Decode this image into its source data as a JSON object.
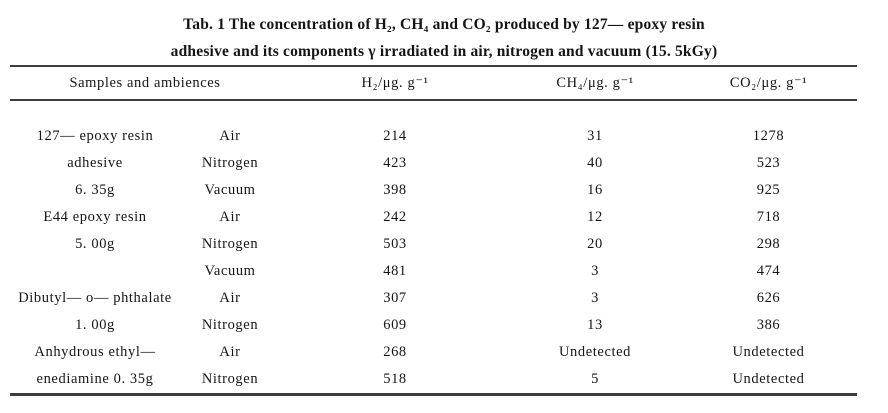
{
  "caption": {
    "line1": "Tab. 1 The concentration of H₂, CH₄ and CO₂ produced by 127— epoxy resin",
    "line2": "adhesive and its components γ irradiated in air, nitrogen and vacuum (15. 5kGy)"
  },
  "table": {
    "headers": {
      "samples_and_ambiences": "Samples and ambiences",
      "h2": "H₂/μg. g⁻¹",
      "ch4": "CH₄/μg. g⁻¹",
      "co2": "CO₂/μg. g⁻¹"
    },
    "rows": [
      {
        "sample": "127— epoxy resin",
        "ambience": "Air",
        "h2": "214",
        "ch4": "31",
        "co2": "1278"
      },
      {
        "sample": "adhesive",
        "ambience": "Nitrogen",
        "h2": "423",
        "ch4": "40",
        "co2": "523"
      },
      {
        "sample": "6. 35g",
        "ambience": "Vacuum",
        "h2": "398",
        "ch4": "16",
        "co2": "925"
      },
      {
        "sample": "E44 epoxy resin",
        "ambience": "Air",
        "h2": "242",
        "ch4": "12",
        "co2": "718"
      },
      {
        "sample": "5. 00g",
        "ambience": "Nitrogen",
        "h2": "503",
        "ch4": "20",
        "co2": "298"
      },
      {
        "sample": "",
        "ambience": "Vacuum",
        "h2": "481",
        "ch4": "3",
        "co2": "474"
      },
      {
        "sample": "Dibutyl— o— phthalate",
        "ambience": "Air",
        "h2": "307",
        "ch4": "3",
        "co2": "626"
      },
      {
        "sample": "1. 00g",
        "ambience": "Nitrogen",
        "h2": "609",
        "ch4": "13",
        "co2": "386"
      },
      {
        "sample": "Anhydrous ethyl—",
        "ambience": "Air",
        "h2": "268",
        "ch4": "Undetected",
        "co2": "Undetected"
      },
      {
        "sample": "enediamine 0. 35g",
        "ambience": "Nitrogen",
        "h2": "518",
        "ch4": "5",
        "co2": "Undetected"
      }
    ]
  },
  "colors": {
    "background": "#ffffff",
    "text": "#151515",
    "rule": "#3d3d3d"
  }
}
